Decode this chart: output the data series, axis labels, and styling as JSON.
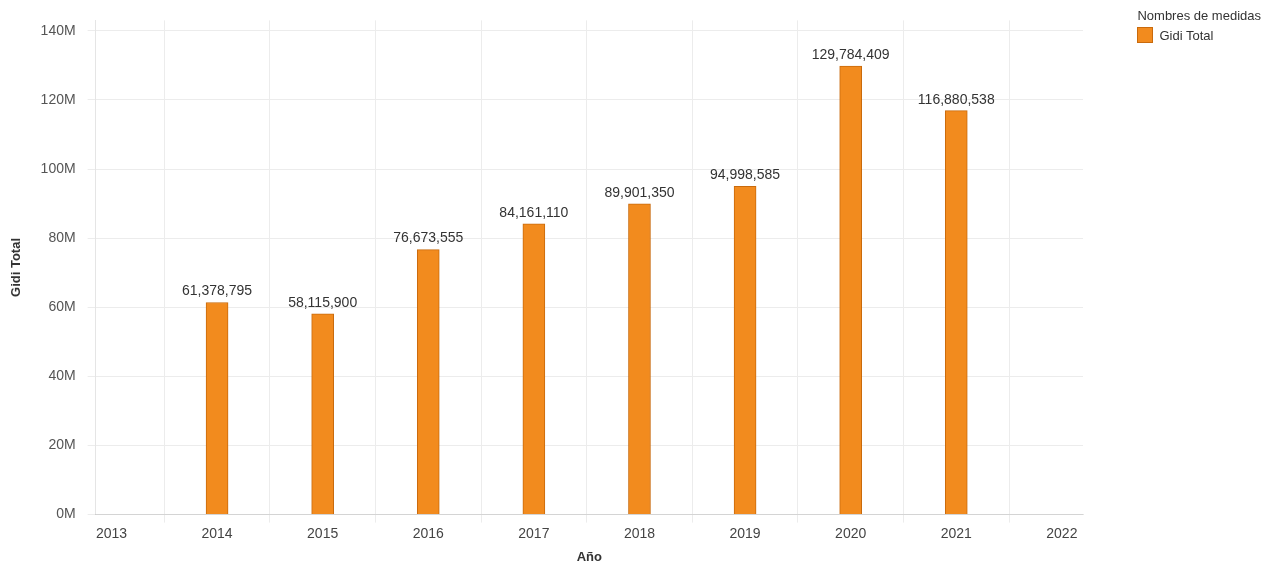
{
  "chart_data": {
    "type": "bar",
    "xlabel": "Año",
    "ylabel": "Gidi Total",
    "legend_title": "Nombres de medidas",
    "legend": "top right",
    "grid": true,
    "x": [
      2014,
      2015,
      2016,
      2017,
      2018,
      2019,
      2020,
      2021
    ],
    "series": [
      {
        "name": "Gidi Total",
        "color": "#f28b1e",
        "values": [
          61378795,
          58115900,
          76673555,
          84161110,
          89901350,
          94998585,
          129784409,
          116880538
        ],
        "value_labels": [
          "61,378,795",
          "58,115,900",
          "76,673,555",
          "84,161,110",
          "89,901,350",
          "94,998,585",
          "129,784,409",
          "116,880,538"
        ]
      }
    ],
    "xlim": [
      2012.85,
      2022.2
    ],
    "xticks": [
      2013,
      2014,
      2015,
      2016,
      2017,
      2018,
      2019,
      2020,
      2021,
      2022
    ],
    "ylim": [
      0,
      143000000
    ],
    "yticks": [
      {
        "value": 0,
        "label": "0M"
      },
      {
        "value": 20000000,
        "label": "20M"
      },
      {
        "value": 40000000,
        "label": "40M"
      },
      {
        "value": 60000000,
        "label": "60M"
      },
      {
        "value": 80000000,
        "label": "80M"
      },
      {
        "value": 100000000,
        "label": "100M"
      },
      {
        "value": 120000000,
        "label": "120M"
      },
      {
        "value": 140000000,
        "label": "140M"
      }
    ]
  }
}
